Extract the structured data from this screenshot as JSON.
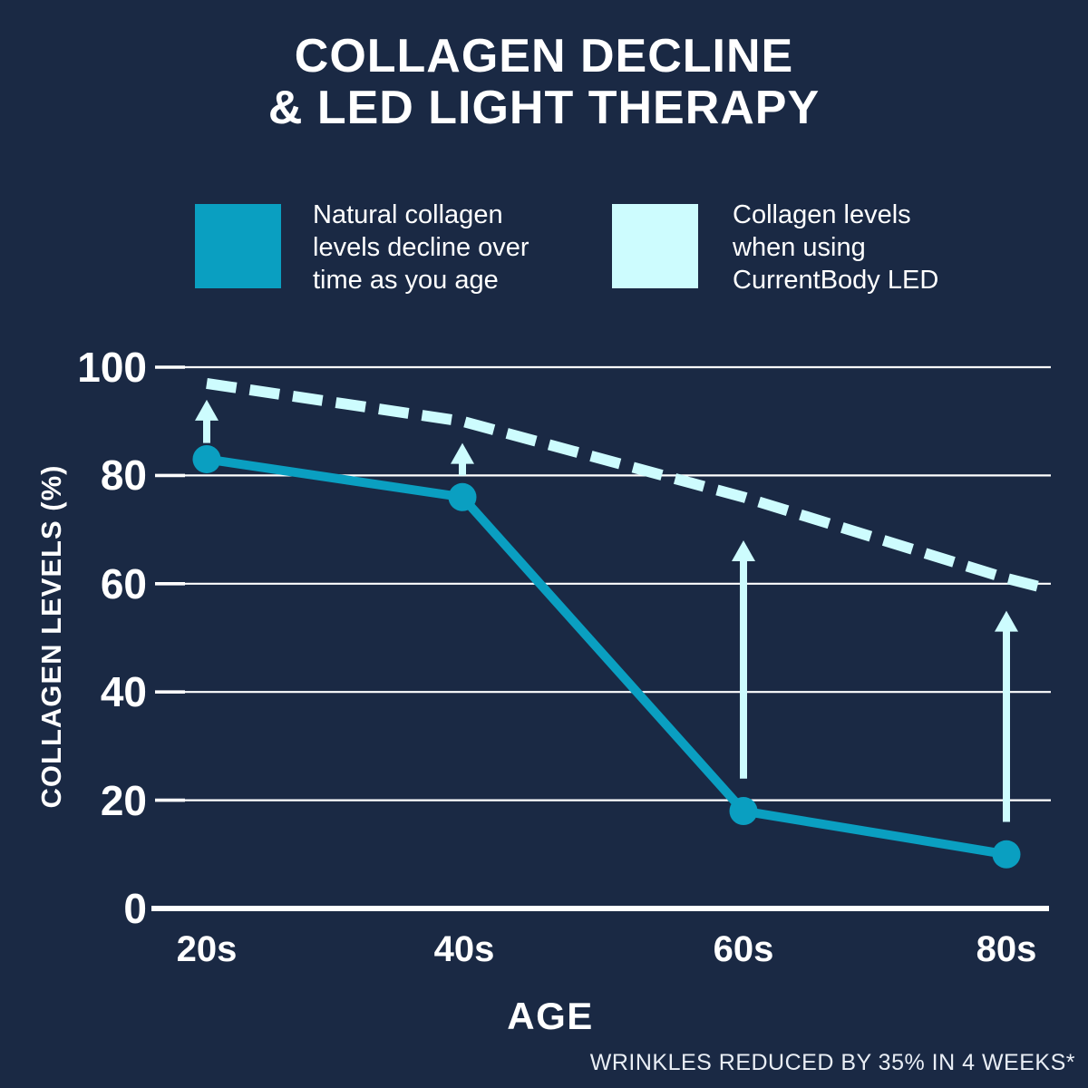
{
  "page": {
    "background_color": "#1A2944",
    "title_lines": [
      "COLLAGEN DECLINE",
      "& LED LIGHT THERAPY"
    ],
    "footnote": "WRINKLES REDUCED BY 35% IN 4 WEEKS*"
  },
  "legend": {
    "items": [
      {
        "id": "natural",
        "label": "Natural collagen levels decline over time as you age",
        "swatch_color": "#0A9FC1"
      },
      {
        "id": "led",
        "label": "Collagen levels when using CurrentBody LED",
        "swatch_color": "#CDFCFE"
      }
    ]
  },
  "chart_data": {
    "type": "line",
    "categories": [
      "20s",
      "40s",
      "60s",
      "80s"
    ],
    "series": [
      {
        "name": "Natural collagen levels decline over time as you age",
        "values": [
          83,
          76,
          18,
          10
        ],
        "color": "#0A9FC1",
        "line_style": "solid",
        "markers": true
      },
      {
        "name": "Collagen levels when using CurrentBody LED",
        "values": [
          97,
          90,
          76,
          61
        ],
        "extends_to_value": 59,
        "color": "#CDFCFE",
        "line_style": "dashed",
        "markers": false
      }
    ],
    "xlabel": "AGE",
    "ylabel": "COLLAGEN LEVELS (%)",
    "yticks": [
      0,
      20,
      40,
      60,
      80,
      100
    ],
    "ylim": [
      0,
      100
    ],
    "grid": "horizontal",
    "grid_color": "#FFFFFF",
    "legend_position": "top",
    "annotations": {
      "arrow_color": "#CDFCFE",
      "arrows": [
        {
          "category": "20s",
          "from_value": 86,
          "to_value": 94,
          "direction": "up"
        },
        {
          "category": "40s",
          "from_value": 80,
          "to_value": 86,
          "direction": "up"
        },
        {
          "category": "60s",
          "from_value": 24,
          "to_value": 68,
          "direction": "up"
        },
        {
          "category": "80s",
          "from_value": 16,
          "to_value": 55,
          "direction": "up"
        }
      ]
    }
  }
}
